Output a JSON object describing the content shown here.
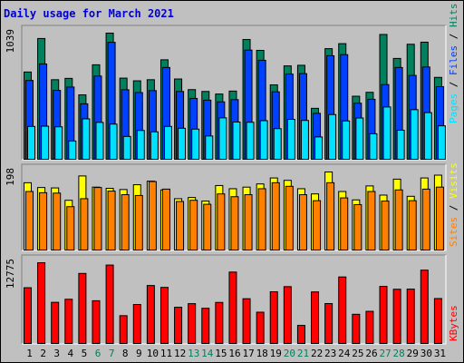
{
  "title": "Daily usage for March 2021",
  "colors": {
    "background": "#c0c0c0",
    "hits": "#00805c",
    "files": "#0040ff",
    "pages": "#00e0ff",
    "visits": "#ffff00",
    "sites": "#ff8000",
    "kbytes": "#ff0000",
    "weekday": "#000000",
    "weekend": "#00805c",
    "title": "#0000d0"
  },
  "side_labels": {
    "pages": "Pages",
    "files": "Files",
    "hits": "Hits",
    "sep": " / ",
    "sites": "Sites",
    "visits": "Visits",
    "kbytes": "KBytes"
  },
  "chart_data": {
    "type": "bar",
    "title": "Daily usage for March 2021",
    "categories": [
      "1",
      "2",
      "3",
      "4",
      "5",
      "6",
      "7",
      "8",
      "9",
      "10",
      "11",
      "12",
      "13",
      "14",
      "15",
      "16",
      "17",
      "18",
      "19",
      "20",
      "21",
      "22",
      "23",
      "24",
      "25",
      "26",
      "27",
      "28",
      "29",
      "30",
      "31"
    ],
    "weekend_days": [
      "6",
      "7",
      "13",
      "14",
      "20",
      "21",
      "27",
      "28"
    ],
    "panels": [
      {
        "name": "hits-files-pages",
        "max_label": "1039",
        "ymax": 1039,
        "series": [
          {
            "name": "Hits",
            "values": [
              721,
              995,
              658,
              669,
              534,
              780,
              1039,
              671,
              649,
              658,
              821,
              664,
              577,
              562,
              541,
              565,
              987,
              898,
              616,
              771,
              776,
              424,
              912,
              953,
              523,
              555,
              1028,
              832,
              948,
              965,
              677
            ]
          },
          {
            "name": "Files",
            "values": [
              652,
              787,
              571,
              598,
              461,
              688,
              964,
              576,
              553,
              569,
              758,
              562,
              505,
              491,
              477,
              495,
              900,
              817,
              559,
              704,
              708,
              383,
              854,
              863,
              466,
              498,
              618,
              758,
              693,
              762,
              601
            ]
          },
          {
            "name": "Pages",
            "values": [
              276,
              278,
              273,
              157,
              338,
              309,
              295,
              194,
              243,
              232,
              276,
              261,
              254,
              198,
              346,
              312,
              310,
              323,
              258,
              334,
              325,
              190,
              373,
              321,
              345,
              216,
              435,
              245,
              413,
              389,
              281
            ]
          }
        ]
      },
      {
        "name": "visits-sites",
        "max_label": "198",
        "ymax": 198,
        "series": [
          {
            "name": "Visits",
            "values": [
              171,
              159,
              158,
              127,
              188,
              160,
              157,
              154,
              166,
              175,
              153,
              131,
              134,
              125,
              164,
              156,
              160,
              168,
              183,
              177,
              156,
              143,
              198,
              149,
              128,
              163,
              140,
              180,
              137,
              183,
              190
            ]
          },
          {
            "name": "Sites",
            "values": [
              149,
              146,
              145,
              111,
              131,
              159,
              150,
              141,
              139,
              174,
              155,
              124,
              127,
              117,
              143,
              136,
              141,
              156,
              171,
              162,
              141,
              126,
              171,
              133,
              116,
              149,
              125,
              153,
              126,
              155,
              160
            ]
          }
        ]
      },
      {
        "name": "kbytes",
        "max_label": "12775",
        "ymax": 12775,
        "series": [
          {
            "name": "KBytes",
            "values": [
              8866,
              12775,
              6580,
              7061,
              11098,
              6828,
              12410,
              4493,
              6240,
              9211,
              8917,
              5811,
              6373,
              5652,
              6565,
              11314,
              7144,
              5039,
              8234,
              9036,
              2972,
              8209,
              6385,
              10550,
              4709,
              5174,
              9068,
              8628,
              8648,
              11614,
              7174
            ]
          }
        ]
      }
    ]
  }
}
